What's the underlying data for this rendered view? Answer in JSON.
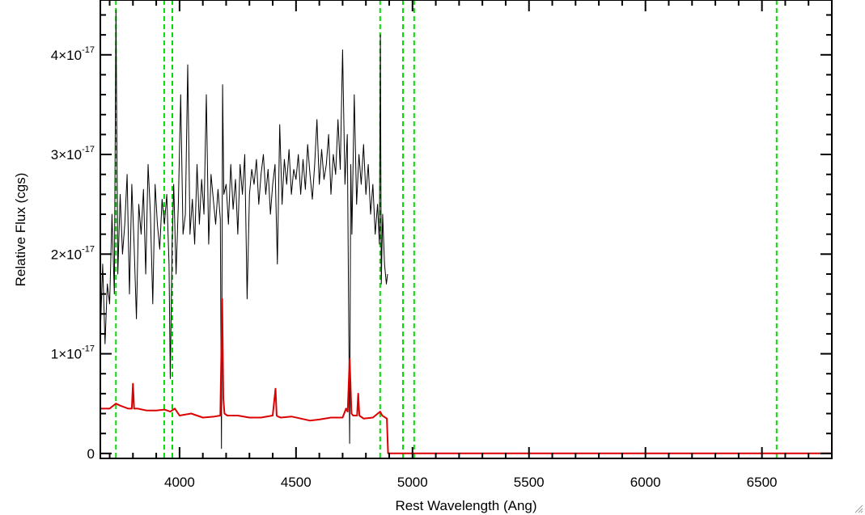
{
  "chart_data": {
    "type": "line",
    "xlabel": "Rest Wavelength (Ang)",
    "ylabel": "Relative Flux (cgs)",
    "xlim": [
      3660,
      6800
    ],
    "ylim": [
      -5e-19,
      4.55e-17
    ],
    "x_ticks": [
      {
        "value": 4000,
        "label": "4000"
      },
      {
        "value": 4500,
        "label": "4500"
      },
      {
        "value": 5000,
        "label": "5000"
      },
      {
        "value": 5500,
        "label": "5500"
      },
      {
        "value": 6000,
        "label": "6000"
      },
      {
        "value": 6500,
        "label": "6500"
      }
    ],
    "x_minor_step": 100,
    "y_ticks": [
      {
        "value": 0,
        "mantissa": "0",
        "exponent": ""
      },
      {
        "value": 1e-17,
        "mantissa": "1×10",
        "exponent": "-17"
      },
      {
        "value": 2e-17,
        "mantissa": "2×10",
        "exponent": "-17"
      },
      {
        "value": 3e-17,
        "mantissa": "3×10",
        "exponent": "-17"
      },
      {
        "value": 4e-17,
        "mantissa": "4×10",
        "exponent": "-17"
      }
    ],
    "y_minor_step": 2e-18,
    "grid": false,
    "vlines": [
      {
        "x": 3727,
        "color": "#00dd00",
        "style": "dashed"
      },
      {
        "x": 3934,
        "color": "#00dd00",
        "style": "dashed"
      },
      {
        "x": 3969,
        "color": "#00dd00",
        "style": "dashed"
      },
      {
        "x": 4861,
        "color": "#00dd00",
        "style": "dashed"
      },
      {
        "x": 4959,
        "color": "#00dd00",
        "style": "dashed"
      },
      {
        "x": 5007,
        "color": "#00dd00",
        "style": "dashed"
      },
      {
        "x": 6563,
        "color": "#00dd00",
        "style": "dashed"
      }
    ],
    "series": [
      {
        "color": "#000000",
        "x": [
          3660,
          3670,
          3680,
          3690,
          3700,
          3710,
          3720,
          3727,
          3735,
          3745,
          3755,
          3765,
          3775,
          3785,
          3795,
          3805,
          3815,
          3825,
          3835,
          3845,
          3855,
          3865,
          3875,
          3885,
          3895,
          3905,
          3915,
          3925,
          3935,
          3945,
          3955,
          3960,
          3968,
          3975,
          3985,
          3995,
          4005,
          4015,
          4025,
          4035,
          4045,
          4055,
          4065,
          4075,
          4085,
          4095,
          4105,
          4115,
          4125,
          4135,
          4145,
          4155,
          4165,
          4175,
          4180,
          4185,
          4190,
          4200,
          4210,
          4220,
          4230,
          4240,
          4250,
          4260,
          4270,
          4280,
          4290,
          4300,
          4310,
          4320,
          4330,
          4340,
          4350,
          4360,
          4370,
          4380,
          4390,
          4400,
          4410,
          4420,
          4430,
          4440,
          4450,
          4460,
          4470,
          4480,
          4490,
          4500,
          4510,
          4520,
          4530,
          4540,
          4550,
          4560,
          4570,
          4580,
          4590,
          4600,
          4610,
          4620,
          4630,
          4640,
          4650,
          4660,
          4670,
          4680,
          4690,
          4700,
          4710,
          4720,
          4726,
          4730,
          4735,
          4740,
          4750,
          4760,
          4770,
          4780,
          4790,
          4800,
          4810,
          4820,
          4830,
          4840,
          4850,
          4858,
          4862,
          4866,
          4872,
          4880,
          4888,
          4893
        ],
        "y": [
          1.2e-17,
          1.9e-17,
          1.1e-17,
          1.7e-17,
          1.5e-17,
          2.4e-17,
          1.6e-17,
          4.45e-17,
          1.8e-17,
          2.6e-17,
          2e-17,
          2.3e-17,
          2.8e-17,
          1.6e-17,
          2.7e-17,
          2.1e-17,
          1.35e-17,
          2.5e-17,
          2.2e-17,
          2.65e-17,
          1.8e-17,
          2.9e-17,
          2.4e-17,
          1.5e-17,
          2.7e-17,
          2.3e-17,
          2.05e-17,
          2.55e-17,
          2.3e-17,
          2.6e-17,
          1.9e-17,
          7.5e-18,
          2.1e-17,
          2.7e-17,
          1.8e-17,
          2.5e-17,
          3.6e-17,
          2.2e-17,
          2.4e-17,
          3.9e-17,
          2.2e-17,
          2.55e-17,
          2.1e-17,
          2.9e-17,
          2.3e-17,
          2.75e-17,
          2.4e-17,
          3.6e-17,
          2.1e-17,
          2.8e-17,
          2.55e-17,
          2.3e-17,
          2.65e-17,
          2.35e-17,
          5e-19,
          3.7e-17,
          2.6e-17,
          2.7e-17,
          2.3e-17,
          2.9e-17,
          2.45e-17,
          2.75e-17,
          2.2e-17,
          2.9e-17,
          2.6e-17,
          3e-17,
          1.55e-17,
          2.6e-17,
          2.85e-17,
          2.7e-17,
          2.95e-17,
          2.5e-17,
          2.8e-17,
          3e-17,
          2.6e-17,
          2.85e-17,
          2.4e-17,
          2.7e-17,
          2.9e-17,
          1.9e-17,
          3.3e-17,
          2.5e-17,
          2.95e-17,
          2.7e-17,
          3.05e-17,
          2.6e-17,
          2.85e-17,
          2.75e-17,
          3e-17,
          2.6e-17,
          2.95e-17,
          2.65e-17,
          3.1e-17,
          2.8e-17,
          2.55e-17,
          2.9e-17,
          3.35e-17,
          2.7e-17,
          3.05e-17,
          2.75e-17,
          2.9e-17,
          3.2e-17,
          2.6e-17,
          3e-17,
          2.8e-17,
          3.35e-17,
          2.85e-17,
          4.05e-17,
          2.7e-17,
          3.2e-17,
          1.4e-17,
          1e-18,
          2.9e-17,
          2.2e-17,
          3.6e-17,
          2.5e-17,
          3e-17,
          2.7e-17,
          3.1e-17,
          2.6e-17,
          2.9e-17,
          2.4e-17,
          2.7e-17,
          2.2e-17,
          2.5e-17,
          2.1e-17,
          4.2e-17,
          1.7e-17,
          2.4e-17,
          1.9e-17,
          1.7e-17,
          1.8e-17
        ]
      },
      {
        "color": "#dd0000",
        "x": [
          3660,
          3700,
          3727,
          3745,
          3780,
          3795,
          3800,
          3805,
          3820,
          3860,
          3900,
          3935,
          3960,
          3980,
          4000,
          4050,
          4100,
          4150,
          4175,
          4183,
          4188,
          4193,
          4205,
          4250,
          4300,
          4350,
          4400,
          4412,
          4417,
          4422,
          4435,
          4480,
          4520,
          4560,
          4600,
          4650,
          4700,
          4715,
          4722,
          4730,
          4738,
          4745,
          4762,
          4767,
          4772,
          4790,
          4830,
          4861,
          4870,
          4890,
          4895,
          4900,
          5000,
          5500,
          6000,
          6500,
          6800
        ],
        "y": [
          4.5e-18,
          4.5e-18,
          5e-18,
          4.8e-18,
          4.5e-18,
          4.5e-18,
          7e-18,
          4.5e-18,
          4.5e-18,
          4.3e-18,
          4.3e-18,
          4.4e-18,
          4.2e-18,
          4.5e-18,
          3.8e-18,
          4e-18,
          3.6e-18,
          3.7e-18,
          3.8e-18,
          1.55e-17,
          5.5e-18,
          4e-18,
          3.8e-18,
          3.8e-18,
          3.6e-18,
          3.6e-18,
          3.8e-18,
          6.5e-18,
          3.8e-18,
          3.7e-18,
          3.6e-18,
          3.7e-18,
          3.5e-18,
          3.3e-18,
          3.4e-18,
          3.6e-18,
          3.6e-18,
          4.5e-18,
          4.2e-18,
          9.5e-18,
          4e-18,
          3.8e-18,
          3.8e-18,
          6e-18,
          3.8e-18,
          3.5e-18,
          3.6e-18,
          4.2e-18,
          3.8e-18,
          3.5e-18,
          0.0,
          0.0,
          0.0,
          0.0,
          0.0,
          0.0,
          0.0
        ]
      }
    ]
  }
}
